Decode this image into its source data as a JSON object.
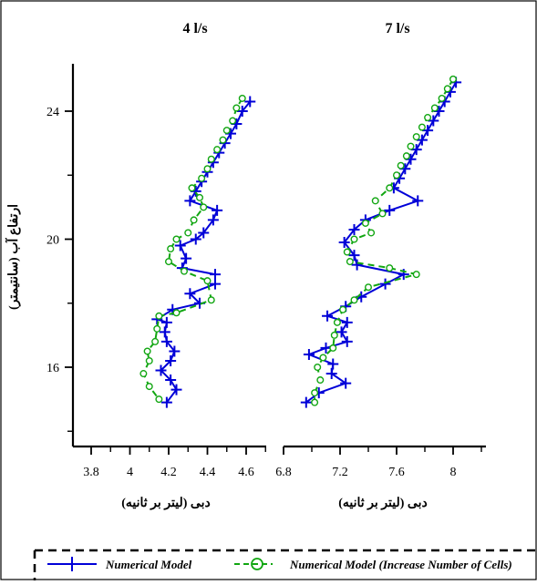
{
  "colors": {
    "numerical": "#0000d8",
    "increase_cells": "#11a611",
    "axis": "#000000"
  },
  "chart_data": [
    {
      "type": "line",
      "title": "4 l/s",
      "xlabel": "دبی (لیتر بر ثانیه)",
      "ylabel": "ارتفاع آب (سانتیمتر)",
      "xlim": [
        3.7,
        4.7
      ],
      "ylim": [
        14,
        25.5
      ],
      "xticks": [
        "3.8",
        "4",
        "4.2",
        "4.4",
        "4.6"
      ],
      "yticks": [
        "16",
        "20",
        "24"
      ],
      "series": [
        {
          "name": "Numerical Model",
          "points": [
            [
              4.62,
              24.3
            ],
            [
              4.58,
              24.0
            ],
            [
              4.55,
              23.6
            ],
            [
              4.52,
              23.3
            ],
            [
              4.49,
              23.0
            ],
            [
              4.46,
              22.7
            ],
            [
              4.43,
              22.4
            ],
            [
              4.4,
              22.1
            ],
            [
              4.37,
              21.8
            ],
            [
              4.34,
              21.5
            ],
            [
              4.31,
              21.2
            ],
            [
              4.45,
              20.9
            ],
            [
              4.43,
              20.6
            ],
            [
              4.38,
              20.2
            ],
            [
              4.34,
              20.0
            ],
            [
              4.26,
              19.8
            ],
            [
              4.29,
              19.4
            ],
            [
              4.27,
              19.1
            ],
            [
              4.44,
              18.9
            ],
            [
              4.44,
              18.6
            ],
            [
              4.31,
              18.3
            ],
            [
              4.36,
              18.0
            ],
            [
              4.22,
              17.8
            ],
            [
              4.14,
              17.5
            ],
            [
              4.19,
              17.4
            ],
            [
              4.18,
              17.1
            ],
            [
              4.19,
              16.8
            ],
            [
              4.23,
              16.5
            ],
            [
              4.21,
              16.2
            ],
            [
              4.16,
              15.9
            ],
            [
              4.21,
              15.6
            ],
            [
              4.24,
              15.3
            ],
            [
              4.19,
              14.9
            ]
          ]
        },
        {
          "name": "Numerical Model (Increase Number of Cells)",
          "points": [
            [
              4.58,
              24.4
            ],
            [
              4.55,
              24.1
            ],
            [
              4.53,
              23.7
            ],
            [
              4.5,
              23.4
            ],
            [
              4.48,
              23.1
            ],
            [
              4.45,
              22.8
            ],
            [
              4.42,
              22.5
            ],
            [
              4.4,
              22.2
            ],
            [
              4.37,
              21.9
            ],
            [
              4.32,
              21.6
            ],
            [
              4.36,
              21.3
            ],
            [
              4.38,
              21.0
            ],
            [
              4.33,
              20.6
            ],
            [
              4.3,
              20.2
            ],
            [
              4.24,
              20.0
            ],
            [
              4.21,
              19.7
            ],
            [
              4.2,
              19.3
            ],
            [
              4.28,
              19.0
            ],
            [
              4.4,
              18.7
            ],
            [
              4.42,
              18.1
            ],
            [
              4.24,
              17.7
            ],
            [
              4.15,
              17.6
            ],
            [
              4.14,
              17.2
            ],
            [
              4.13,
              16.8
            ],
            [
              4.09,
              16.5
            ],
            [
              4.1,
              16.2
            ],
            [
              4.07,
              15.8
            ],
            [
              4.1,
              15.4
            ],
            [
              4.15,
              15.0
            ]
          ]
        }
      ]
    },
    {
      "type": "line",
      "title": "7 l/s",
      "xlabel": "دبی (لیتر بر ثانیه)",
      "xlim": [
        6.8,
        8.15
      ],
      "ylim": [
        14,
        25.5
      ],
      "xticks": [
        "6.8",
        "7.2",
        "7.6",
        "8"
      ],
      "series": [
        {
          "name": "Numerical Model",
          "points": [
            [
              8.02,
              24.9
            ],
            [
              7.98,
              24.6
            ],
            [
              7.94,
              24.3
            ],
            [
              7.9,
              24.0
            ],
            [
              7.86,
              23.7
            ],
            [
              7.82,
              23.4
            ],
            [
              7.78,
              23.1
            ],
            [
              7.74,
              22.8
            ],
            [
              7.7,
              22.5
            ],
            [
              7.66,
              22.2
            ],
            [
              7.62,
              21.9
            ],
            [
              7.58,
              21.6
            ],
            [
              7.75,
              21.2
            ],
            [
              7.55,
              20.9
            ],
            [
              7.38,
              20.6
            ],
            [
              7.3,
              20.3
            ],
            [
              7.23,
              19.9
            ],
            [
              7.3,
              19.5
            ],
            [
              7.32,
              19.2
            ],
            [
              7.65,
              18.9
            ],
            [
              7.52,
              18.6
            ],
            [
              7.35,
              18.2
            ],
            [
              7.24,
              17.9
            ],
            [
              7.11,
              17.6
            ],
            [
              7.25,
              17.4
            ],
            [
              7.21,
              17.1
            ],
            [
              7.25,
              16.8
            ],
            [
              7.1,
              16.6
            ],
            [
              6.98,
              16.4
            ],
            [
              7.15,
              16.1
            ],
            [
              7.14,
              15.8
            ],
            [
              7.24,
              15.5
            ],
            [
              7.05,
              15.2
            ],
            [
              6.96,
              14.9
            ]
          ]
        },
        {
          "name": "Numerical Model (Increase Number of Cells)",
          "points": [
            [
              8.0,
              25.0
            ],
            [
              7.96,
              24.7
            ],
            [
              7.92,
              24.4
            ],
            [
              7.87,
              24.1
            ],
            [
              7.82,
              23.8
            ],
            [
              7.78,
              23.5
            ],
            [
              7.74,
              23.2
            ],
            [
              7.7,
              22.9
            ],
            [
              7.67,
              22.6
            ],
            [
              7.63,
              22.3
            ],
            [
              7.6,
              22.0
            ],
            [
              7.55,
              21.6
            ],
            [
              7.45,
              21.2
            ],
            [
              7.5,
              20.8
            ],
            [
              7.38,
              20.5
            ],
            [
              7.42,
              20.2
            ],
            [
              7.3,
              20.0
            ],
            [
              7.25,
              19.6
            ],
            [
              7.27,
              19.3
            ],
            [
              7.55,
              19.1
            ],
            [
              7.74,
              18.9
            ],
            [
              7.4,
              18.5
            ],
            [
              7.3,
              18.1
            ],
            [
              7.22,
              17.8
            ],
            [
              7.18,
              17.4
            ],
            [
              7.16,
              17.0
            ],
            [
              7.15,
              16.6
            ],
            [
              7.08,
              16.3
            ],
            [
              7.04,
              16.0
            ],
            [
              7.06,
              15.6
            ],
            [
              7.02,
              15.2
            ],
            [
              7.02,
              14.9
            ]
          ]
        }
      ]
    }
  ],
  "legend": {
    "items": [
      {
        "label": "Numerical Model",
        "marker": "plus"
      },
      {
        "label": "Numerical Model (Increase Number of Cells)",
        "marker": "circle"
      }
    ]
  }
}
